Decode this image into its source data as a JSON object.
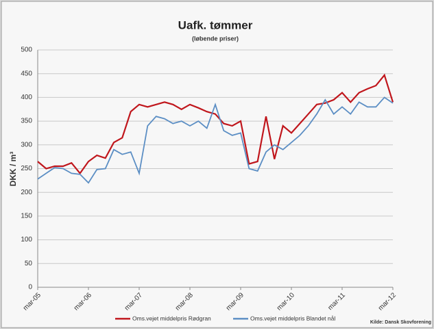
{
  "chart_data": {
    "type": "line",
    "title": "Uafk. tømmer",
    "subtitle": "(løbende priser)",
    "ylabel": "DKK / m³",
    "source": "Kilde: Dansk Skovforening",
    "categories": [
      "mar-05",
      null,
      null,
      null,
      null,
      null,
      "mar-06",
      null,
      null,
      null,
      null,
      null,
      "mar-07",
      null,
      null,
      null,
      null,
      null,
      "mar-08",
      null,
      null,
      null,
      null,
      null,
      "mar-09",
      null,
      null,
      null,
      null,
      null,
      "mar-10",
      null,
      null,
      null,
      null,
      null,
      "mar-11",
      null,
      null,
      null,
      null,
      null,
      "mar-12"
    ],
    "series": [
      {
        "name": "Oms.vejet middelpris Rødgran",
        "color": "#c0161c",
        "values": [
          265,
          250,
          255,
          255,
          262,
          240,
          265,
          278,
          272,
          305,
          315,
          370,
          385,
          380,
          385,
          390,
          385,
          375,
          385,
          378,
          370,
          365,
          345,
          340,
          350,
          260,
          265,
          360,
          270,
          340,
          325,
          345,
          365,
          385,
          388,
          395,
          410,
          390,
          410,
          418,
          425,
          447,
          390
        ]
      },
      {
        "name": "Oms.vejet middelpris Blandet nål",
        "color": "#5b8ec4",
        "values": [
          228,
          240,
          252,
          250,
          240,
          238,
          220,
          248,
          250,
          290,
          280,
          285,
          240,
          340,
          360,
          355,
          345,
          350,
          340,
          350,
          335,
          385,
          330,
          320,
          325,
          250,
          245,
          285,
          300,
          290,
          305,
          320,
          340,
          365,
          395,
          365,
          380,
          365,
          390,
          380,
          380,
          400,
          388
        ]
      }
    ],
    "ylim": [
      0,
      500
    ],
    "yticks": [
      0,
      50,
      100,
      150,
      200,
      250,
      300,
      350,
      400,
      450,
      500
    ],
    "grid": true
  }
}
